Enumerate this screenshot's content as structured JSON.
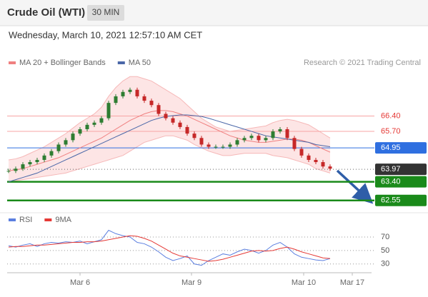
{
  "header": {
    "title": "Crude Oil (WTI)",
    "badge": "30 MIN",
    "subtitle": "Wednesday, March 10, 2021 12:57:10 AM CET",
    "credit": "Research © 2021 Trading Central"
  },
  "chart_data": [
    {
      "type": "candlestick",
      "x": [
        0,
        1,
        2,
        3,
        4,
        5,
        6,
        7,
        8,
        9,
        10,
        11,
        12,
        13,
        14,
        15,
        16,
        17,
        18,
        19,
        20,
        21,
        22,
        23,
        24,
        25,
        26,
        27,
        28,
        29,
        30,
        31,
        32,
        33,
        34,
        35,
        36,
        37,
        38,
        39,
        40,
        41,
        42,
        43,
        44,
        45
      ],
      "close": [
        63.9,
        64.0,
        64.2,
        64.3,
        64.4,
        64.6,
        64.8,
        65.1,
        65.3,
        65.6,
        65.8,
        66.0,
        66.1,
        66.3,
        67.0,
        67.3,
        67.5,
        67.6,
        67.3,
        67.1,
        66.9,
        66.5,
        66.3,
        66.1,
        65.9,
        65.6,
        65.4,
        65.1,
        65.0,
        65.0,
        65.0,
        65.1,
        65.3,
        65.4,
        65.5,
        65.3,
        65.4,
        65.7,
        65.8,
        65.4,
        64.9,
        64.6,
        64.4,
        64.3,
        64.1,
        64.0
      ],
      "up_color": "#2e7d32",
      "down_color": "#c62828",
      "series": [
        {
          "name": "MA 20 + Bollinger Bands",
          "color": "#f08080",
          "band_color": "#fcdcdc",
          "values": [
            63.9,
            63.95,
            64.0,
            64.1,
            64.2,
            64.3,
            64.4,
            64.5,
            64.65,
            64.8,
            64.95,
            65.1,
            65.25,
            65.4,
            65.6,
            65.8,
            66.0,
            66.2,
            66.35,
            66.5,
            66.6,
            66.65,
            66.65,
            66.6,
            66.5,
            66.4,
            66.25,
            66.1,
            65.95,
            65.8,
            65.65,
            65.5,
            65.4,
            65.3,
            65.25,
            65.2,
            65.2,
            65.25,
            65.3,
            65.35,
            65.35,
            65.3,
            65.2,
            65.05,
            64.9,
            64.75
          ],
          "upper": [
            64.4,
            64.45,
            64.55,
            64.7,
            64.85,
            65.0,
            65.2,
            65.4,
            65.6,
            65.85,
            66.1,
            66.3,
            66.5,
            66.8,
            67.3,
            67.7,
            68.0,
            68.2,
            68.2,
            68.1,
            68.0,
            67.8,
            67.6,
            67.4,
            67.2,
            66.9,
            66.6,
            66.3,
            66.1,
            65.9,
            65.8,
            65.7,
            65.75,
            65.8,
            65.85,
            65.9,
            65.95,
            66.1,
            66.2,
            66.25,
            66.2,
            66.1,
            66.0,
            65.8,
            65.6,
            65.4
          ],
          "lower": [
            63.4,
            63.45,
            63.5,
            63.55,
            63.6,
            63.65,
            63.7,
            63.75,
            63.8,
            63.9,
            64.0,
            64.1,
            64.2,
            64.3,
            64.4,
            64.5,
            64.6,
            64.8,
            65.0,
            65.2,
            65.3,
            65.4,
            65.5,
            65.5,
            65.4,
            65.3,
            65.1,
            64.95,
            64.8,
            64.7,
            64.6,
            64.6,
            64.65,
            64.7,
            64.7,
            64.7,
            64.7,
            64.6,
            64.55,
            64.5,
            64.4,
            64.3,
            64.2,
            64.0,
            63.9,
            63.8
          ]
        },
        {
          "name": "MA 50",
          "color": "#4a67a8",
          "values": [
            63.4,
            63.5,
            63.6,
            63.7,
            63.8,
            63.95,
            64.1,
            64.25,
            64.4,
            64.55,
            64.7,
            64.85,
            65.0,
            65.15,
            65.3,
            65.45,
            65.6,
            65.75,
            65.9,
            66.05,
            66.2,
            66.3,
            66.38,
            66.42,
            66.45,
            66.45,
            66.42,
            66.38,
            66.3,
            66.2,
            66.1,
            66.0,
            65.9,
            65.8,
            65.7,
            65.6,
            65.5,
            65.45,
            65.4,
            65.35,
            65.3,
            65.25,
            65.2,
            65.1,
            65.05,
            65.0
          ]
        }
      ],
      "levels": {
        "values": [
          66.4,
          65.7,
          64.95,
          63.97,
          63.4,
          62.55
        ],
        "value_labels": [
          "66.40",
          "65.70",
          "64.95",
          "63.97",
          "63.40",
          "62.55"
        ],
        "colors": [
          "#e53935",
          "#e53935",
          "#2f6fe0",
          "#333333",
          "#1a8a1a",
          "#1a8a1a"
        ],
        "styles": [
          "text",
          "text",
          "box",
          "box-dotted",
          "box-thick",
          "box-thick"
        ]
      },
      "xlim": [
        -0.2,
        57.8
      ],
      "ylim": [
        62.25,
        68.6
      ],
      "xticks": [
        {
          "value": 10,
          "label": "Mar 6"
        },
        {
          "value": 25.6,
          "label": "Mar 9"
        },
        {
          "value": 41.3,
          "label": "Mar 10"
        },
        {
          "value": 48.1,
          "label": "Mar 17"
        }
      ]
    },
    {
      "type": "line",
      "series": [
        {
          "name": "RSI",
          "color": "#5b7fe0",
          "values": [
            57,
            55,
            58,
            60,
            56,
            60,
            62,
            61,
            63,
            62,
            64,
            60,
            63,
            66,
            80,
            75,
            72,
            70,
            62,
            60,
            55,
            48,
            40,
            35,
            38,
            42,
            30,
            28,
            35,
            40,
            45,
            43,
            48,
            52,
            50,
            46,
            50,
            58,
            62,
            55,
            45,
            40,
            38,
            36,
            35,
            38
          ]
        },
        {
          "name": "9MA",
          "color": "#e53935",
          "values": [
            55,
            56,
            56,
            57,
            58,
            58,
            59,
            60,
            61,
            62,
            62,
            63,
            63,
            64,
            66,
            68,
            70,
            72,
            71,
            68,
            64,
            58,
            52,
            46,
            42,
            40,
            38,
            36,
            34,
            35,
            37,
            40,
            43,
            46,
            49,
            50,
            49,
            50,
            53,
            55,
            52,
            48,
            45,
            42,
            39,
            38
          ]
        }
      ],
      "ylim": [
        17,
        88
      ],
      "yticks": [
        70,
        50,
        30
      ],
      "grid": true
    }
  ]
}
